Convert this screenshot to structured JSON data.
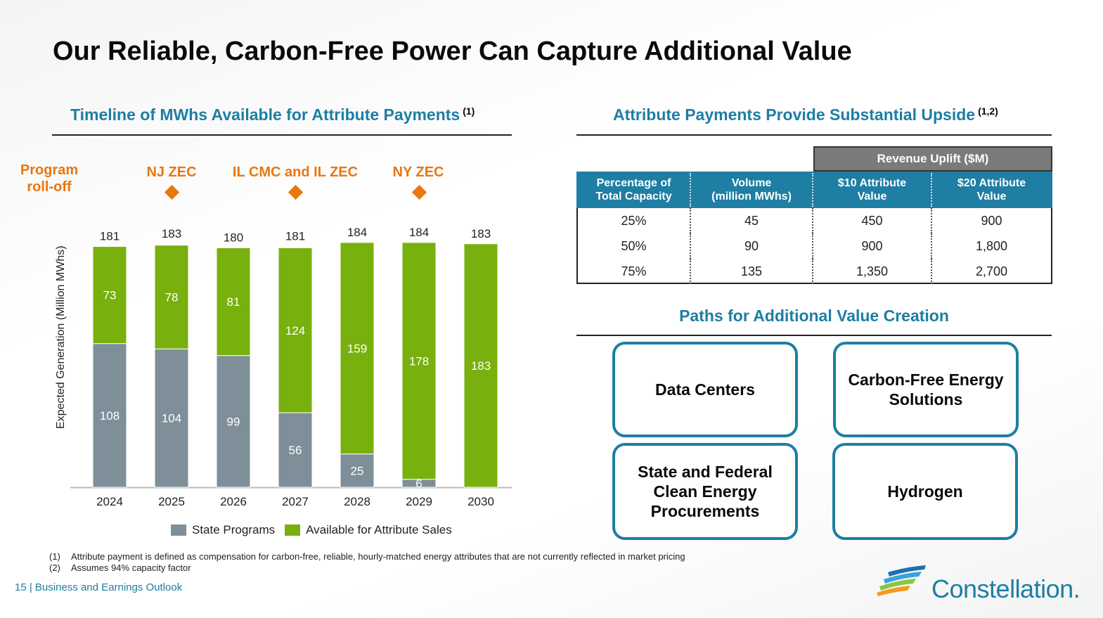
{
  "title": "Our Reliable, Carbon-Free Power Can Capture Additional Value",
  "left_heading": {
    "text": "Timeline of MWhs Available for Attribute Payments",
    "sup": "(1)"
  },
  "right_heading": {
    "text": "Attribute Payments Provide Substantial Upside",
    "sup": "(1,2)"
  },
  "events": {
    "program": {
      "line1": "Program",
      "line2": "roll-off"
    },
    "nj": "NJ ZEC",
    "il": "IL CMC and IL ZEC",
    "ny": "NY ZEC"
  },
  "colors": {
    "state": "#7f8f99",
    "available": "#78b00d",
    "accent_orange": "#e8770f",
    "accent_blue": "#1e7ea3"
  },
  "chart_data": {
    "type": "bar",
    "stacked": true,
    "categories": [
      "2024",
      "2025",
      "2026",
      "2027",
      "2028",
      "2029",
      "2030"
    ],
    "series": [
      {
        "name": "State Programs",
        "values": [
          108,
          104,
          99,
          56,
          25,
          6,
          0
        ]
      },
      {
        "name": "Available for Attribute Sales",
        "values": [
          73,
          78,
          81,
          124,
          159,
          178,
          183
        ]
      }
    ],
    "totals": [
      181,
      183,
      180,
      181,
      184,
      184,
      183
    ],
    "ylabel": "Expected Generation (Million MWhs)",
    "ylim": [
      0,
      185
    ]
  },
  "table": {
    "group_header": "Revenue Uplift ($M)",
    "headers": [
      {
        "line1": "Percentage of",
        "line2": "Total Capacity"
      },
      {
        "line1": "Volume",
        "line2": "(million MWhs)"
      },
      {
        "line1": "$10 Attribute",
        "line2": "Value"
      },
      {
        "line1": "$20 Attribute",
        "line2": "Value"
      }
    ],
    "rows": [
      [
        "25%",
        "45",
        "450",
        "900"
      ],
      [
        "50%",
        "90",
        "900",
        "1,800"
      ],
      [
        "75%",
        "135",
        "1,350",
        "2,700"
      ]
    ]
  },
  "paths_heading": "Paths for Additional Value Creation",
  "paths": [
    {
      "line1": "Data Centers",
      "line2": "",
      "line3": ""
    },
    {
      "line1": "Carbon-Free Energy",
      "line2": "Solutions",
      "line3": ""
    },
    {
      "line1": "State and Federal",
      "line2": "Clean Energy",
      "line3": "Procurements"
    },
    {
      "line1": "Hydrogen",
      "line2": "",
      "line3": ""
    }
  ],
  "footnotes": [
    {
      "num": "(1)",
      "text": "Attribute payment is defined as compensation for carbon-free, reliable, hourly-matched energy attributes that are not currently reflected in market pricing"
    },
    {
      "num": "(2)",
      "text": "Assumes 94% capacity factor"
    }
  ],
  "footer": "15  | Business and Earnings Outlook",
  "logo_text": "Constellation."
}
